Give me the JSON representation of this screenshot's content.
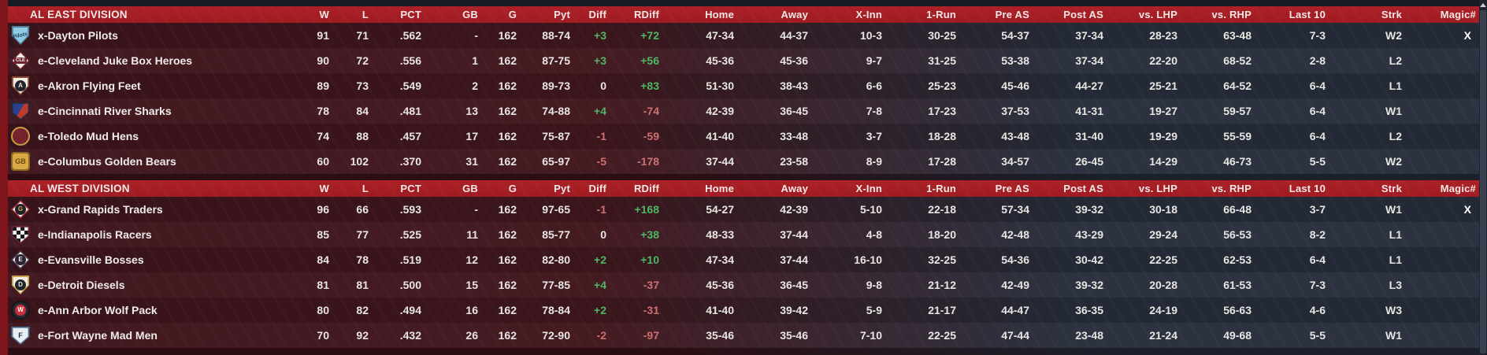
{
  "columns": [
    "W",
    "L",
    "PCT",
    "GB",
    "G",
    "Pyt",
    "Diff",
    "RDiff",
    "Home",
    "Away",
    "X-Inn",
    "1-Run",
    "Pre AS",
    "Post AS",
    "vs. LHP",
    "vs. RHP",
    "Last 10",
    "Strk",
    "Magic#"
  ],
  "colors": {
    "header_bg": "#a31e24",
    "accent_strip": "#7d151b",
    "positive": "#4db763",
    "negative": "#cf7070",
    "row_maroon": "#3a151b",
    "row_slate": "#232935",
    "text": "#e8e6e2"
  },
  "icons": {
    "scrollbar_up": "up-arrow"
  },
  "divisions": [
    {
      "title": "AL EAST DIVISION",
      "teams": [
        {
          "name": "x-Dayton Pilots",
          "logo": {
            "icon": "dayton-pilots-logo",
            "shape": "plate",
            "bg": "#8ecbe4",
            "bd": "#4f7d9a",
            "text": "Pilots",
            "textColor": "#1c3c5c",
            "style": "script"
          },
          "stats": [
            "91",
            "71",
            ".562",
            "-",
            "162",
            "88-74",
            "+3",
            "+72",
            "47-34",
            "44-37",
            "10-3",
            "30-25",
            "54-37",
            "37-34",
            "28-23",
            "63-48",
            "7-3",
            "W2",
            "X"
          ]
        },
        {
          "name": "e-Cleveland Juke Box Heroes",
          "logo": {
            "icon": "cleveland-juke-box-heroes-logo",
            "shape": "diamond",
            "bg": "#f1ece2",
            "bd": "#6b2331",
            "text": "CLE",
            "textColor": "#f5efe6",
            "chipBg": "#6b2331",
            "style": "chip-rect"
          },
          "stats": [
            "90",
            "72",
            ".556",
            "1",
            "162",
            "87-75",
            "+3",
            "+56",
            "45-36",
            "45-36",
            "9-7",
            "31-25",
            "53-38",
            "37-34",
            "22-20",
            "68-52",
            "2-8",
            "L2",
            ""
          ]
        },
        {
          "name": "e-Akron  Flying Feet",
          "logo": {
            "icon": "akron-flying-feet-logo",
            "shape": "plate",
            "bg": "#f2eee4",
            "bd": "#8a4630",
            "text": "A",
            "textColor": "#f0e9dc",
            "chipBg": "#23232b",
            "style": "chip-circle"
          },
          "stats": [
            "89",
            "73",
            ".549",
            "2",
            "162",
            "89-73",
            "0",
            "+83",
            "51-30",
            "38-43",
            "6-6",
            "25-23",
            "45-46",
            "44-27",
            "25-21",
            "64-52",
            "6-4",
            "L1",
            ""
          ]
        },
        {
          "name": "e-Cincinnati River Sharks",
          "logo": {
            "icon": "cincinnati-river-sharks-logo",
            "shape": "shield",
            "bg": "split",
            "bd": "#262b33",
            "split1": "#2b3f8c",
            "split2": "#c0392e",
            "text": "",
            "textColor": "#ffffff"
          },
          "stats": [
            "78",
            "84",
            ".481",
            "13",
            "162",
            "74-88",
            "+4",
            "-74",
            "42-39",
            "36-45",
            "7-8",
            "17-23",
            "37-53",
            "41-31",
            "19-27",
            "59-57",
            "6-4",
            "W1",
            ""
          ]
        },
        {
          "name": "e-Toledo  Mud Hens",
          "logo": {
            "icon": "toledo-mud-hens-logo",
            "shape": "circle",
            "bg": "#73222e",
            "bd": "#c99b3f",
            "text": "",
            "textColor": "#e7b84a"
          },
          "stats": [
            "74",
            "88",
            ".457",
            "17",
            "162",
            "75-87",
            "-1",
            "-59",
            "41-40",
            "33-48",
            "3-7",
            "18-28",
            "43-48",
            "31-40",
            "19-29",
            "55-59",
            "6-4",
            "L2",
            ""
          ]
        },
        {
          "name": "e-Columbus Golden Bears",
          "logo": {
            "icon": "columbus-golden-bears-logo",
            "shape": "square",
            "bg": "#d7a844",
            "bd": "#8a6a22",
            "text": "GB",
            "textColor": "#6b4a14"
          },
          "stats": [
            "60",
            "102",
            ".370",
            "31",
            "162",
            "65-97",
            "-5",
            "-178",
            "37-44",
            "23-58",
            "8-9",
            "17-28",
            "34-57",
            "26-45",
            "14-29",
            "46-73",
            "5-5",
            "W2",
            ""
          ]
        }
      ]
    },
    {
      "title": "AL WEST DIVISION",
      "teams": [
        {
          "name": "x-Grand Rapids Traders",
          "logo": {
            "icon": "grand-rapids-traders-logo",
            "shape": "diamond",
            "bg": "#f1ece2",
            "bd": "#a32533",
            "text": "G",
            "textColor": "#d9a943",
            "chipBg": "#20202a",
            "style": "chip-circle"
          },
          "stats": [
            "96",
            "66",
            ".593",
            "-",
            "162",
            "97-65",
            "-1",
            "+168",
            "54-27",
            "42-39",
            "5-10",
            "22-18",
            "57-34",
            "39-32",
            "30-18",
            "66-48",
            "3-7",
            "W1",
            "X"
          ]
        },
        {
          "name": "e-Indianapolis Racers",
          "logo": {
            "icon": "indianapolis-racers-logo",
            "shape": "shield",
            "bg": "checker",
            "bd": "#6b2331",
            "text": "",
            "textColor": "#ffffff"
          },
          "stats": [
            "85",
            "77",
            ".525",
            "11",
            "162",
            "85-77",
            "0",
            "+38",
            "48-33",
            "37-44",
            "4-8",
            "18-20",
            "42-48",
            "43-29",
            "29-24",
            "56-53",
            "8-2",
            "L1",
            ""
          ]
        },
        {
          "name": "e-Evansville Bosses",
          "logo": {
            "icon": "evansville-bosses-logo",
            "shape": "diamond",
            "bg": "#f1ece2",
            "bd": "#4a3a52",
            "text": "E",
            "textColor": "#f0e9dc",
            "chipBg": "#2a2432",
            "style": "chip-circle"
          },
          "stats": [
            "84",
            "78",
            ".519",
            "12",
            "162",
            "82-80",
            "+2",
            "+10",
            "47-34",
            "37-44",
            "16-10",
            "32-25",
            "54-36",
            "30-42",
            "22-25",
            "62-53",
            "6-4",
            "L1",
            ""
          ]
        },
        {
          "name": "e-Detroit Diesels",
          "logo": {
            "icon": "detroit-diesels-logo",
            "shape": "plate",
            "bg": "#f2eee4",
            "bd": "#c9a24a",
            "text": "D",
            "textColor": "#f0e9dc",
            "chipBg": "#20242c",
            "style": "chip-circle"
          },
          "stats": [
            "81",
            "81",
            ".500",
            "15",
            "162",
            "77-85",
            "+4",
            "-37",
            "45-36",
            "36-45",
            "9-8",
            "21-12",
            "42-49",
            "39-32",
            "20-28",
            "61-53",
            "7-3",
            "L3",
            ""
          ]
        },
        {
          "name": "e-Ann Arbor Wolf Pack",
          "logo": {
            "icon": "ann-arbor-wolf-pack-logo",
            "shape": "circle",
            "bg": "#262932",
            "bd": "#14161c",
            "text": "W",
            "textColor": "#ffffff",
            "chipBg": "#c8303a",
            "style": "chip-circle"
          },
          "stats": [
            "80",
            "82",
            ".494",
            "16",
            "162",
            "78-84",
            "+2",
            "-31",
            "41-40",
            "39-42",
            "5-9",
            "21-17",
            "44-47",
            "36-35",
            "24-19",
            "56-63",
            "4-6",
            "W3",
            ""
          ]
        },
        {
          "name": "e-Fort Wayne Mad Men",
          "logo": {
            "icon": "fort-wayne-mad-men-logo",
            "shape": "shield",
            "bg": "#e8eef2",
            "bd": "#4f7294",
            "text": "F",
            "textColor": "#223548"
          },
          "stats": [
            "70",
            "92",
            ".432",
            "26",
            "162",
            "72-90",
            "-2",
            "-97",
            "35-46",
            "35-46",
            "7-10",
            "22-25",
            "47-44",
            "23-48",
            "21-24",
            "49-68",
            "5-5",
            "W1",
            ""
          ]
        }
      ]
    }
  ]
}
